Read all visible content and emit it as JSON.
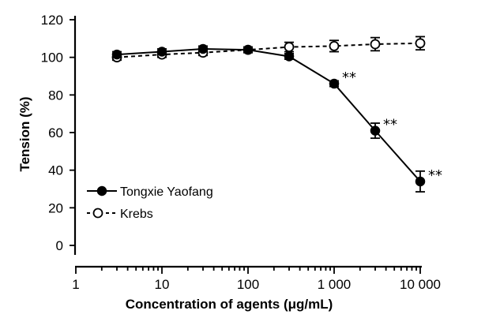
{
  "chart_data": {
    "type": "line",
    "xlabel": "Concentration of agents (μg/mL)",
    "ylabel": "Tension (%)",
    "xscale": "log",
    "xlim": [
      1,
      10000
    ],
    "ylim": [
      0,
      120
    ],
    "x_ticks": [
      1,
      10,
      100,
      1000,
      10000
    ],
    "x_tick_labels": [
      "1",
      "10",
      "100",
      "1 000",
      "10 000"
    ],
    "y_ticks": [
      0,
      20,
      40,
      60,
      80,
      100,
      120
    ],
    "y_tick_labels": [
      "0",
      "20",
      "40",
      "60",
      "80",
      "100",
      "120"
    ],
    "grid": false,
    "legend_position": "bottom-left",
    "series": [
      {
        "name": "Tongxie Yaofang",
        "line_style": "solid",
        "marker": "filled-circle",
        "x": [
          3,
          10,
          30,
          100,
          300,
          1000,
          3000,
          10000
        ],
        "y": [
          101.5,
          103,
          104.5,
          104,
          100.5,
          86,
          61,
          34
        ],
        "err": [
          1.5,
          1.5,
          1.5,
          1.5,
          1.5,
          1.5,
          4,
          5.5
        ]
      },
      {
        "name": "Krebs",
        "line_style": "dashed",
        "marker": "open-circle",
        "x": [
          3,
          10,
          30,
          100,
          300,
          1000,
          3000,
          10000
        ],
        "y": [
          100,
          101.5,
          102.5,
          104,
          105.5,
          106,
          107,
          107.5
        ],
        "err": [
          1.5,
          1.5,
          1.5,
          1.5,
          2.5,
          3,
          3.5,
          3.5
        ]
      }
    ],
    "annotations": [
      {
        "text": "**",
        "x": 1000,
        "y": 86
      },
      {
        "text": "**",
        "x": 3000,
        "y": 61
      },
      {
        "text": "**",
        "x": 10000,
        "y": 34
      }
    ]
  }
}
